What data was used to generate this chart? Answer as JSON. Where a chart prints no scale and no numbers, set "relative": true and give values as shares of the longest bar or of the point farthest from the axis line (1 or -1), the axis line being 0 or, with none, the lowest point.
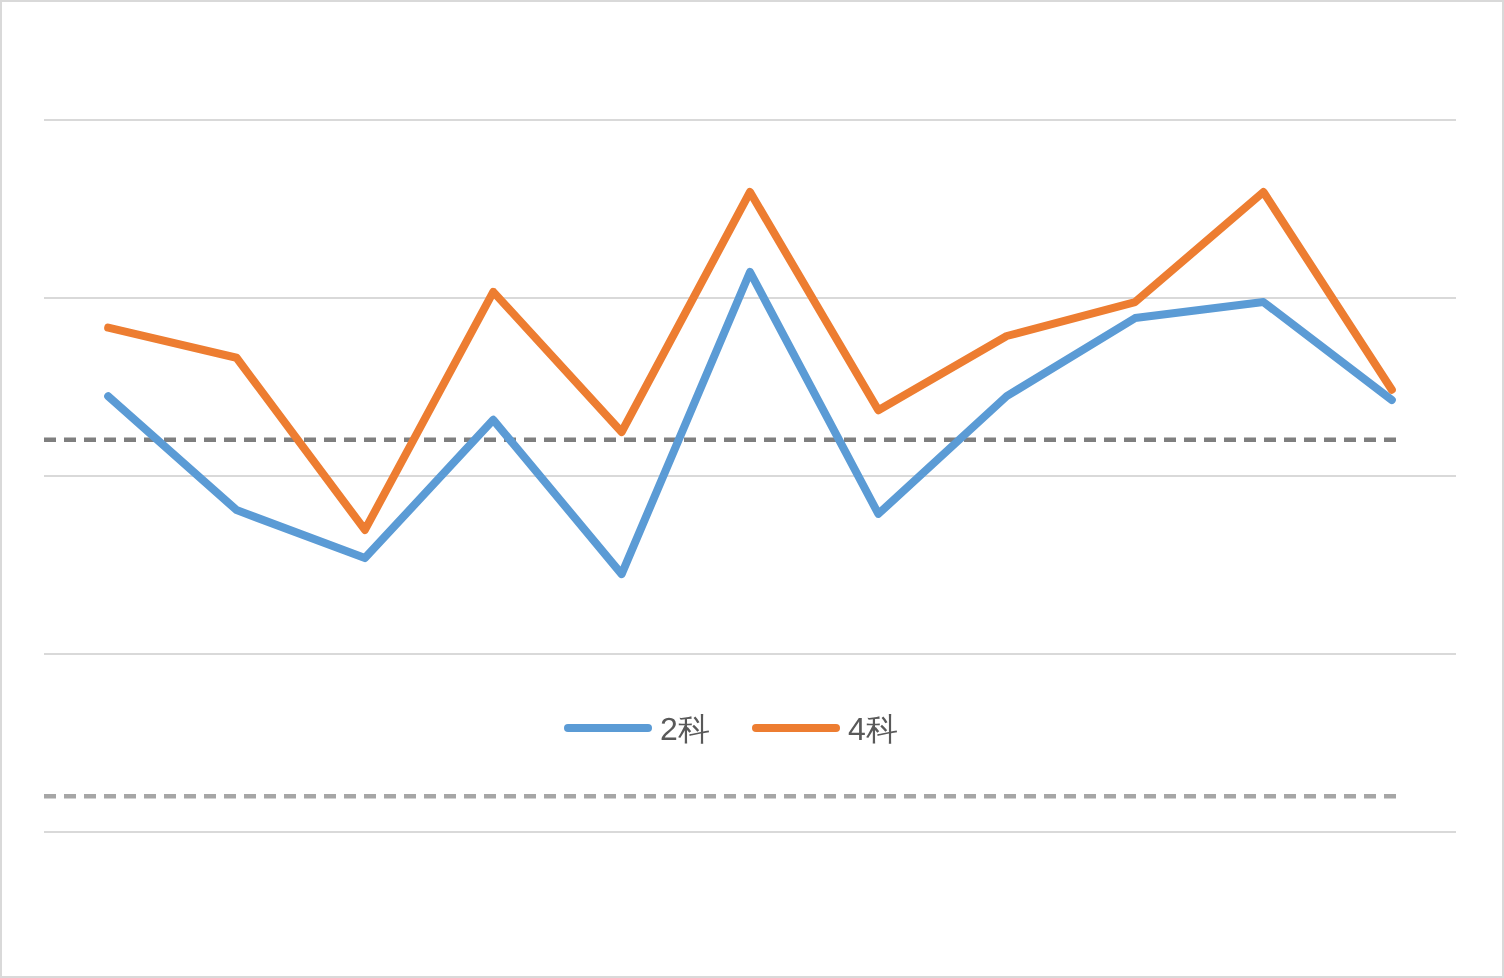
{
  "chart_data": {
    "type": "line",
    "relative": true,
    "categories": [
      null,
      null,
      null,
      null,
      null,
      null,
      null,
      null,
      null,
      null,
      null
    ],
    "series": [
      {
        "name": "2科",
        "color": "#5b9bd5",
        "values": [
          0.681,
          0.503,
          0.428,
          0.644,
          0.403,
          0.875,
          0.497,
          0.681,
          0.803,
          0.828,
          0.675
        ]
      },
      {
        "name": "4科",
        "color": "#ed7d31",
        "values": [
          0.788,
          0.741,
          0.472,
          0.844,
          0.625,
          1,
          0.659,
          0.775,
          0.828,
          1,
          0.691
        ]
      }
    ],
    "ref_lines": [
      {
        "axis": "y",
        "value": 0.613,
        "color": "#7f7f7f",
        "line_style": "dashed"
      },
      {
        "axis": "y",
        "value": 0.056,
        "color": "#a6a6a6",
        "line_style": "dashed"
      }
    ],
    "grid": "y",
    "legend": "bottom",
    "marker": "none",
    "line_style": "solid"
  }
}
